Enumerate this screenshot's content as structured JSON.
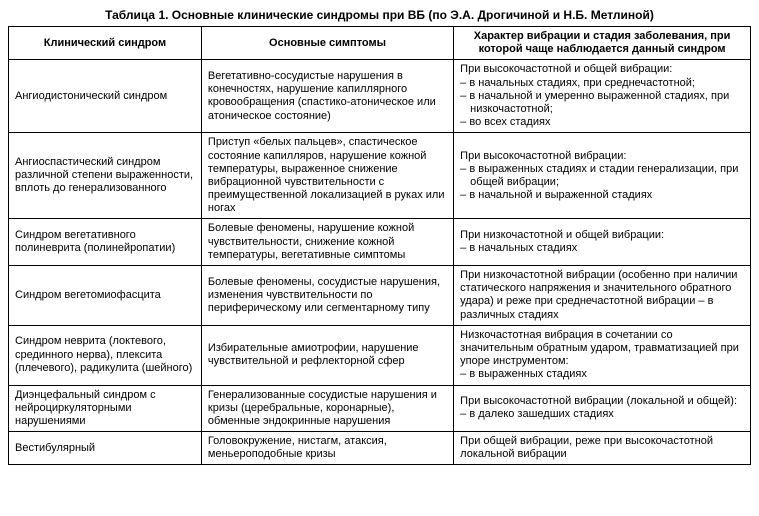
{
  "caption": "Таблица 1. Основные клинические синдромы при ВБ (по Э.А. Дрогичиной и Н.Б. Метлиной)",
  "headers": [
    "Клинический синдром",
    "Основные симптомы",
    "Характер вибрации и стадия заболевания, при которой чаще наблюдается данный синдром"
  ],
  "rows": [
    {
      "c1": "Ангиодистонический синдром",
      "c2": "Вегетативно-сосудистые нарушения в конечностях, нарушение капиллярного кровообращения (спастико-атоническое или атоническое состояние)",
      "c3_lead": "При высокочастотной и общей вибрации:",
      "c3_items": [
        "– в начальных стадиях, при среднечастотной;",
        "– в начальной и умеренно выраженной стадиях, при низкочастотной;",
        "– во всех стадиях"
      ]
    },
    {
      "c1": "Ангиоспастический синдром различной степени выраженности, вплоть до генерализованного",
      "c2": "Приступ «белых пальцев», спастическое состояние капилляров, нарушение кожной температуры, выраженное снижение вибрационной чувствительности с преимущественной локализацией в руках или ногах",
      "c3_lead": "При высокочастотной вибрации:",
      "c3_items": [
        "– в выраженных стадиях и стадии генерализации, при общей вибрации;",
        "– в начальной и выраженной стадиях"
      ]
    },
    {
      "c1": "Синдром вегетативного полиневрита (полинейропатии)",
      "c2": "Болевые феномены, нарушение кожной чувствительности, снижение кожной температуры, вегетативные симптомы",
      "c3_lead": "При низкочастотной и общей вибрации:",
      "c3_items": [
        "– в начальных стадиях"
      ]
    },
    {
      "c1": "Синдром вегетомиофасцита",
      "c2": "Болевые феномены, сосудистые нарушения, изменения чувствительности по периферическому или сегментарному типу",
      "c3_plain": "При низкочастотной вибрации (особенно при наличии статического напряжения и значительного обратного удара) и реже при среднечастотной вибрации – в различных стадиях"
    },
    {
      "c1": "Синдром неврита (локтевого, срединного нерва), плексита (плечевого), радикулита (шейного)",
      "c2": "Избирательные амиотрофии, нарушение чувствительной и рефлекторной сфер",
      "c3_lead": "Низкочастотная вибрация в сочетании со значительным обратным ударом, травматизацией при упоре инструментом:",
      "c3_items": [
        "– в выраженных стадиях"
      ]
    },
    {
      "c1": "Диэнцефальный синдром с нейроциркуляторными нарушениями",
      "c2": "Генерализованные сосудистые нарушения и кризы (церебральные, коронарные), обменные эндокринные нарушения",
      "c3_lead": "При высокочастотной вибрации (локальной и общей):",
      "c3_items": [
        "– в далеко зашедших стадиях"
      ]
    },
    {
      "c1": "Вестибулярный",
      "c2": "Головокружение, нистагм, атаксия, меньероподобные кризы",
      "c3_plain": "При общей вибрации, реже при высокочастотной локальной вибрации"
    }
  ]
}
